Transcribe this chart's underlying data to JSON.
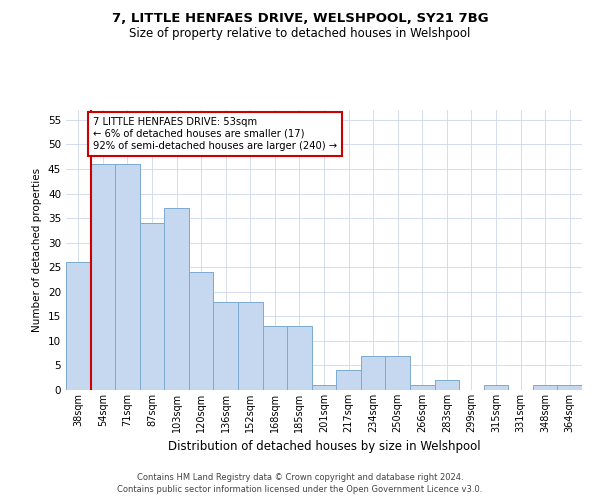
{
  "title1": "7, LITTLE HENFAES DRIVE, WELSHPOOL, SY21 7BG",
  "title2": "Size of property relative to detached houses in Welshpool",
  "xlabel": "Distribution of detached houses by size in Welshpool",
  "ylabel": "Number of detached properties",
  "categories": [
    "38sqm",
    "54sqm",
    "71sqm",
    "87sqm",
    "103sqm",
    "120sqm",
    "136sqm",
    "152sqm",
    "168sqm",
    "185sqm",
    "201sqm",
    "217sqm",
    "234sqm",
    "250sqm",
    "266sqm",
    "283sqm",
    "299sqm",
    "315sqm",
    "331sqm",
    "348sqm",
    "364sqm"
  ],
  "values": [
    26,
    46,
    46,
    34,
    37,
    24,
    18,
    18,
    13,
    13,
    1,
    4,
    7,
    7,
    1,
    2,
    0,
    1,
    0,
    1,
    1
  ],
  "bar_color": "#c5d8f0",
  "bar_edge_color": "#7aabcf",
  "annotation_title": "7 LITTLE HENFAES DRIVE: 53sqm",
  "annotation_line1": "← 6% of detached houses are smaller (17)",
  "annotation_line2": "92% of semi-detached houses are larger (240) →",
  "annotation_box_color": "#ffffff",
  "annotation_border_color": "#cc0000",
  "vline_color": "#cc0000",
  "ylim": [
    0,
    57
  ],
  "yticks": [
    0,
    5,
    10,
    15,
    20,
    25,
    30,
    35,
    40,
    45,
    50,
    55
  ],
  "footnote1": "Contains HM Land Registry data © Crown copyright and database right 2024.",
  "footnote2": "Contains public sector information licensed under the Open Government Licence v3.0.",
  "background_color": "#ffffff",
  "grid_color": "#cdd8ea"
}
